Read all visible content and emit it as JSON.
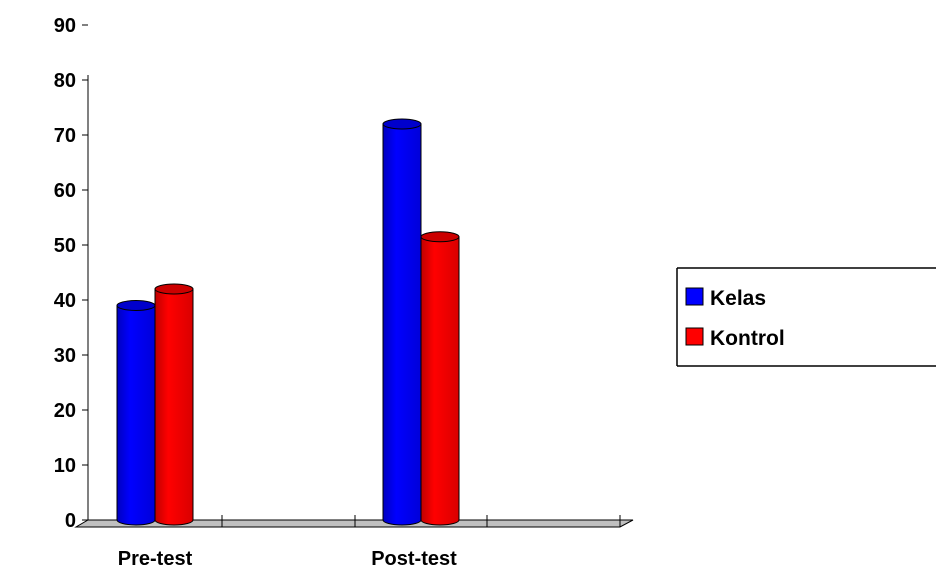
{
  "chart_data": {
    "type": "bar",
    "categories": [
      "Pre-test",
      "Post-test"
    ],
    "series": [
      {
        "name": "Kelas",
        "values": [
          39,
          72
        ],
        "color": "#0000ff"
      },
      {
        "name": "Kontrol",
        "values": [
          42,
          51.5
        ],
        "color": "#ff0000"
      }
    ],
    "ylim": [
      0,
      90
    ],
    "yticks": [
      "0",
      "10",
      "20",
      "30",
      "40",
      "50",
      "60",
      "70",
      "80",
      "90"
    ],
    "grid": false,
    "legend_position": "right",
    "style": "3d-cylinder-bars"
  }
}
